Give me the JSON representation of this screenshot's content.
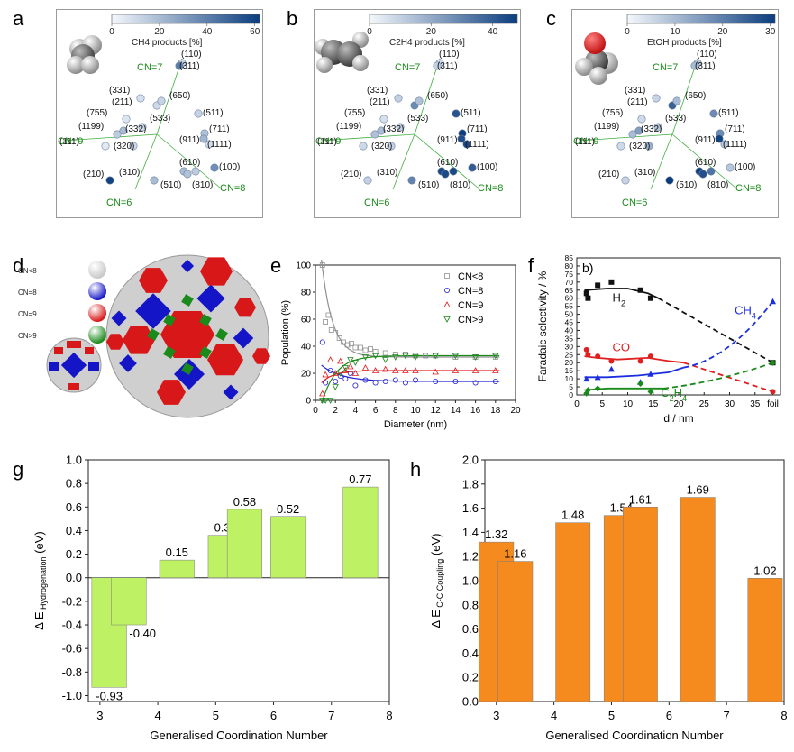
{
  "panel_labels": [
    "a",
    "b",
    "c",
    "d",
    "e",
    "f",
    "g",
    "h"
  ],
  "colors": {
    "scale_low": "#f4f8fc",
    "scale_high": "#0b3d7e",
    "cn_line": "#3fae3f",
    "cn_text": "#1a8a1a",
    "bar_green": "#bef264",
    "bar_orange": "#f58a1f",
    "bar_stroke": "#7a7a7a"
  },
  "facet": {
    "cn_labels": {
      "cn7": "CN=7",
      "cn9": "CN=9",
      "cn8": "CN=8",
      "cn6": "CN=6"
    },
    "facets": [
      "(110)",
      "(311)",
      "(331)",
      "(211)",
      "(650)",
      "(755)",
      "(533)",
      "(511)",
      "(1199)",
      "(332)",
      "(711)",
      "(911)",
      "(111)",
      "(320)",
      "(1111)",
      "(610)",
      "(100)",
      "(210)",
      "(310)",
      "(510)",
      "(810)"
    ]
  },
  "map_panels": [
    {
      "title": "CH4 products [%]",
      "ticks": [
        "0",
        "20",
        "40",
        "60"
      ],
      "vmax": 62,
      "values": [
        12,
        40,
        8,
        10,
        12,
        6,
        10,
        12,
        15,
        20,
        18,
        22,
        5,
        10,
        8,
        20,
        35,
        60,
        20,
        18,
        15
      ]
    },
    {
      "title": "C2H4 products [%]",
      "ticks": [
        "0",
        "20",
        "40"
      ],
      "vmax": 48,
      "values": [
        8,
        10,
        10,
        28,
        14,
        6,
        10,
        42,
        14,
        15,
        48,
        44,
        8,
        10,
        45,
        45,
        40,
        10,
        30,
        45,
        45
      ]
    },
    {
      "title": "EtOH products [%]",
      "ticks": [
        "0",
        "10",
        "20",
        "30"
      ],
      "vmax": 31,
      "values": [
        8,
        10,
        6,
        25,
        10,
        5,
        8,
        18,
        10,
        15,
        18,
        30,
        5,
        12,
        8,
        30,
        8,
        6,
        31,
        28,
        22
      ]
    }
  ],
  "panel_d": {
    "legend": [
      {
        "label": "CN<8",
        "color": "#c8c8c8"
      },
      {
        "label": "CN=8",
        "color": "#1515c8"
      },
      {
        "label": "CN=9",
        "color": "#d81818"
      },
      {
        "label": "CN>9",
        "color": "#1a8a1a"
      }
    ]
  },
  "chart_data": [
    {
      "type": "scatter",
      "xlabel": "Diameter (nm)",
      "ylabel": "Population (%)",
      "xlim": [
        0,
        20
      ],
      "ylim": [
        0,
        100
      ],
      "xticks": [
        "0",
        "2",
        "4",
        "6",
        "8",
        "10",
        "12",
        "14",
        "16",
        "18",
        "20"
      ],
      "yticks": [
        "0",
        "20",
        "40",
        "60",
        "80",
        "100"
      ],
      "legend_position": "top-right",
      "series": [
        {
          "name": "CN<8",
          "color": "#909090",
          "marker": "square",
          "x": [
            0.7,
            1.0,
            1.3,
            1.6,
            2.0,
            2.4,
            2.8,
            3.2,
            3.6,
            4.0,
            4.5,
            5.0,
            5.5,
            6.0,
            7.0,
            8.0,
            9.0,
            10.0,
            11.0,
            12.0,
            14.0,
            16.0,
            18.0
          ],
          "y": [
            100,
            58,
            63,
            52,
            50,
            46,
            43,
            41,
            42,
            39,
            39,
            37,
            38,
            36,
            35,
            34,
            34,
            33,
            33,
            33,
            32,
            32,
            32
          ]
        },
        {
          "name": "CN=8",
          "color": "#2020d0",
          "marker": "circle",
          "x": [
            0.7,
            1.0,
            1.5,
            2.0,
            2.5,
            3.0,
            3.5,
            4.0,
            5.0,
            6.0,
            7.0,
            8.0,
            9.0,
            10.0,
            12.0,
            14.0,
            16.0,
            18.0
          ],
          "y": [
            43,
            13,
            22,
            14,
            18,
            16,
            20,
            11,
            15,
            13,
            14,
            15,
            13,
            15,
            14,
            14,
            13,
            14
          ]
        },
        {
          "name": "CN=9",
          "color": "#e02020",
          "marker": "triangle-up",
          "x": [
            0.7,
            1.0,
            1.5,
            2.0,
            2.5,
            3.0,
            3.5,
            4.0,
            5.0,
            6.0,
            7.0,
            8.0,
            9.0,
            10.0,
            12.0,
            14.0,
            16.0,
            18.0
          ],
          "y": [
            5,
            19,
            30,
            20,
            29,
            22,
            25,
            20,
            24,
            22,
            23,
            22,
            22,
            22,
            21,
            22,
            22,
            22
          ]
        },
        {
          "name": "CN>9",
          "color": "#1a8a1a",
          "marker": "triangle-down",
          "x": [
            0.7,
            1.0,
            1.5,
            2.0,
            2.5,
            3.0,
            3.5,
            4.0,
            5.0,
            6.0,
            7.0,
            8.0,
            9.0,
            10.0,
            12.0,
            14.0,
            16.0,
            18.0
          ],
          "y": [
            0,
            0,
            0,
            10,
            20,
            24,
            30,
            28,
            32,
            33,
            30,
            32,
            33,
            32,
            33,
            33,
            32,
            33
          ]
        }
      ]
    },
    {
      "type": "line",
      "panel_tag": "b)",
      "xlabel": "d / nm",
      "ylabel": "Faradaic selectivity / %",
      "xlim": [
        0,
        40
      ],
      "ylim": [
        0,
        85
      ],
      "xticks": [
        "0",
        "5",
        "10",
        "15",
        "20",
        "25",
        "30",
        "35",
        "foil"
      ],
      "yticks": [
        "0",
        "5",
        "10",
        "15",
        "20",
        "25",
        "30",
        "35",
        "40",
        "45",
        "50",
        "55",
        "60",
        "65",
        "70",
        "75",
        "80",
        "85"
      ],
      "series": [
        {
          "name": "H2",
          "color": "#111111",
          "marker": "square",
          "x": [
            1.9,
            2.2,
            4.1,
            6.8,
            12.5,
            14.5
          ],
          "y": [
            63,
            60,
            68,
            70,
            65,
            60
          ]
        },
        {
          "name": "CO",
          "color": "#e02020",
          "marker": "circle",
          "x": [
            1.9,
            2.2,
            4.1,
            6.8,
            12.5,
            14.5
          ],
          "y": [
            28,
            25,
            24,
            21,
            21,
            24
          ]
        },
        {
          "name": "CH4",
          "color": "#1a2ee0",
          "marker": "triangle-up",
          "x": [
            1.9,
            4.1,
            6.8,
            12.5,
            14.5
          ],
          "y": [
            10,
            11,
            16,
            8,
            13
          ]
        },
        {
          "name": "C2H4",
          "color": "#1a8a1a",
          "marker": "diamond",
          "x": [
            1.9,
            2.2,
            4.1,
            12.5,
            14.5
          ],
          "y": [
            1,
            3,
            4,
            7,
            2
          ]
        }
      ],
      "foil_values": {
        "H2": 20,
        "CO": 2,
        "CH4": 58,
        "C2H4": 20
      },
      "series_labels": {
        "h2": "H2",
        "co": "CO",
        "ch4": "CH4",
        "c2h4": "C2H4"
      }
    },
    {
      "type": "bar",
      "xlabel": "Generalised Coordination Number",
      "ylabel": "Δ E Hydrogenation (eV)",
      "ylabel_parts": {
        "delta": "Δ E",
        "sub": "Hydrogenation",
        "unit": " (eV)"
      },
      "xlim": [
        2.8,
        8
      ],
      "ylim": [
        -1.05,
        1.0
      ],
      "xticks": [
        "3",
        "4",
        "5",
        "6",
        "7",
        "8"
      ],
      "yticks": [
        "-1.0",
        "-0.8",
        "-0.6",
        "-0.4",
        "-0.2",
        "0.0",
        "0.2",
        "0.4",
        "0.6",
        "0.8",
        "1.0"
      ],
      "x": [
        3.16,
        3.5,
        4.33,
        5.17,
        5.5,
        6.25,
        7.5
      ],
      "values": [
        -0.93,
        -0.4,
        0.15,
        0.36,
        0.58,
        0.52,
        0.77
      ],
      "labels": [
        "-0.93",
        "-0.40",
        "0.15",
        "0.36",
        "0.58",
        "0.52",
        "0.77"
      ]
    },
    {
      "type": "bar",
      "xlabel": "Generalised Coordination Number",
      "ylabel": "Δ E C-C Coupling (eV)",
      "ylabel_parts": {
        "delta": "Δ E",
        "sub": "C-C Coupling",
        "unit": " (eV)"
      },
      "xlim": [
        2.8,
        8
      ],
      "ylim": [
        0,
        2.0
      ],
      "xticks": [
        "3",
        "4",
        "5",
        "6",
        "7",
        "8"
      ],
      "yticks": [
        "0.0",
        "0.2",
        "0.4",
        "0.6",
        "0.8",
        "1.0",
        "1.2",
        "1.4",
        "1.6",
        "1.8",
        "2.0"
      ],
      "x": [
        3.0,
        3.33,
        4.33,
        5.17,
        5.5,
        6.5,
        7.67
      ],
      "values": [
        1.32,
        1.16,
        1.48,
        1.54,
        1.61,
        1.69,
        1.02
      ],
      "labels": [
        "1.32",
        "1.16",
        "1.48",
        "1.54",
        "1.61",
        "1.69",
        "1.02"
      ]
    }
  ]
}
